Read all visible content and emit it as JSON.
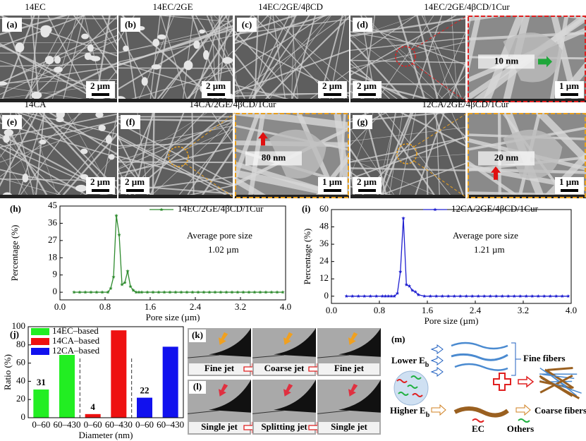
{
  "sem_panels": [
    {
      "letter": "(a)",
      "title": "14EC",
      "scale": "2 µm"
    },
    {
      "letter": "(b)",
      "title": "14EC/2GE",
      "scale": "2 µm"
    },
    {
      "letter": "(c)",
      "title": "14EC/2GE/4βCD",
      "scale": "2 µm"
    },
    {
      "letter": "(d)",
      "title": "14EC/2GE/4βCD/1Cur",
      "scale": "2 µm"
    },
    {
      "scale": "1 µm",
      "annotation": "10 nm"
    },
    {
      "letter": "(e)",
      "title": "14CA",
      "scale": "2 µm"
    },
    {
      "letter": "(f)",
      "title": "14CA/2GE/4βCD/1Cur",
      "scale": "2 µm"
    },
    {
      "scale": "1 µm",
      "annotation": "80 nm"
    },
    {
      "letter": "(g)",
      "title": "12CA/2GE/4βCD/1Cur",
      "scale": "2 µm"
    },
    {
      "scale": "1 µm",
      "annotation": "20 nm"
    }
  ],
  "chart_data": [
    {
      "type": "line",
      "panel_label": "(h)",
      "x_label": "Pore size (µm)",
      "y_label": "Percentage (%)",
      "annotations": [
        "Average pore size",
        "1.02 µm"
      ],
      "x": [
        0.25,
        0.35,
        0.45,
        0.55,
        0.65,
        0.75,
        0.85,
        0.9,
        0.95,
        1.0,
        1.05,
        1.1,
        1.15,
        1.2,
        1.25,
        1.3,
        1.35,
        1.4,
        1.45,
        1.55,
        1.65,
        1.75,
        1.85,
        1.95,
        2.05,
        2.15,
        2.25,
        2.35,
        2.45,
        2.55,
        2.65,
        2.75,
        2.85,
        2.95,
        3.05,
        3.15,
        3.25,
        3.35,
        3.45,
        3.55,
        3.65,
        3.75,
        3.85,
        3.95
      ],
      "series": [
        {
          "name": "14EC/2GE/4βCD/1Cur",
          "color": "#2e8b2e",
          "values": [
            0,
            0,
            0,
            0,
            0,
            0,
            0,
            2,
            8,
            40,
            30,
            4,
            5,
            11,
            3,
            1,
            0,
            0,
            0,
            0,
            0,
            0,
            0,
            0,
            0,
            0,
            0,
            0,
            0,
            0,
            0,
            0,
            0,
            0,
            0,
            0,
            0,
            0,
            0,
            0,
            0,
            0,
            0,
            0
          ]
        }
      ],
      "xlim": [
        0,
        4
      ],
      "xticks": [
        {
          "value": 0,
          "label": "0.0"
        },
        0.8,
        1.6,
        2.4,
        3.2,
        {
          "value": 4,
          "label": "4.0"
        }
      ],
      "ylim": [
        -4,
        45
      ],
      "yticks": [
        0,
        9,
        18,
        27,
        36,
        45
      ]
    },
    {
      "type": "line",
      "panel_label": "(i)",
      "x_label": "Pore size (µm)",
      "y_label": "Percentage (%)",
      "annotations": [
        "Average pore size",
        "1.21 µm"
      ],
      "x": [
        0.25,
        0.35,
        0.45,
        0.55,
        0.65,
        0.75,
        0.85,
        0.9,
        0.95,
        1.0,
        1.05,
        1.1,
        1.15,
        1.2,
        1.25,
        1.3,
        1.35,
        1.4,
        1.45,
        1.55,
        1.65,
        1.75,
        1.85,
        1.95,
        2.05,
        2.15,
        2.25,
        2.35,
        2.45,
        2.55,
        2.65,
        2.75,
        2.85,
        2.95,
        3.05,
        3.15,
        3.25,
        3.35,
        3.45,
        3.55,
        3.65,
        3.75,
        3.85,
        3.95
      ],
      "series": [
        {
          "name": "12CA/2GE/4βCD/1Cur",
          "color": "#2020d0",
          "values": [
            0,
            0,
            0,
            0,
            0,
            0,
            0,
            0,
            0,
            0,
            0,
            2,
            17,
            54,
            8,
            7,
            4,
            3,
            1,
            0,
            0,
            0,
            0,
            0,
            0,
            0,
            0,
            0,
            0,
            0,
            0,
            0,
            0,
            0,
            0,
            0,
            0,
            0,
            0,
            0,
            0,
            0,
            0,
            0
          ]
        }
      ],
      "xlim": [
        0,
        4
      ],
      "xticks": [
        {
          "value": 0,
          "label": "0.0"
        },
        0.8,
        1.6,
        2.4,
        3.2,
        {
          "value": 4,
          "label": "4.0"
        }
      ],
      "ylim": [
        -5,
        60
      ],
      "yticks": [
        0,
        12,
        24,
        36,
        48,
        60
      ]
    },
    {
      "type": "bar",
      "panel_label": "(j)",
      "x_label": "Diameter (nm)",
      "y_label": "Ratio (%)",
      "categories": [
        "0–60",
        "60–430",
        "0–60",
        "60–430",
        "0–60",
        "60–430"
      ],
      "series": [
        {
          "name": "14EC–based",
          "color": "#22ee22",
          "values": [
            31,
            69,
            null,
            null,
            null,
            null
          ],
          "value_labels": [
            "31",
            null,
            null,
            null,
            null,
            null
          ]
        },
        {
          "name": "14CA–based",
          "color": "#ee1111",
          "values": [
            null,
            null,
            4,
            96,
            null,
            null
          ],
          "value_labels": [
            null,
            null,
            "4",
            null,
            null,
            null
          ]
        },
        {
          "name": "12CA–based",
          "color": "#1111ee",
          "values": [
            null,
            null,
            null,
            null,
            22,
            78
          ],
          "value_labels": [
            null,
            null,
            null,
            null,
            "22",
            null
          ]
        }
      ],
      "ylim": [
        0,
        100
      ],
      "yticks": [
        0,
        20,
        40,
        60,
        80,
        100
      ]
    }
  ],
  "jet_panels": [
    {
      "letter": "(k)",
      "labels": [
        "Fine jet",
        "Coarse jet",
        "Fine jet"
      ]
    },
    {
      "letter": "(l)",
      "labels": [
        "Single jet",
        "Splitting jet",
        "Single jet"
      ]
    }
  ],
  "mechanism": {
    "letter": "(m)",
    "lower": {
      "text": "Lower E",
      "sub": "b"
    },
    "higher": {
      "text": "Higher E",
      "sub": "b"
    },
    "fine": "Fine fibers",
    "coarse": "Coarse fibers",
    "ec": "EC",
    "others": "Others"
  }
}
